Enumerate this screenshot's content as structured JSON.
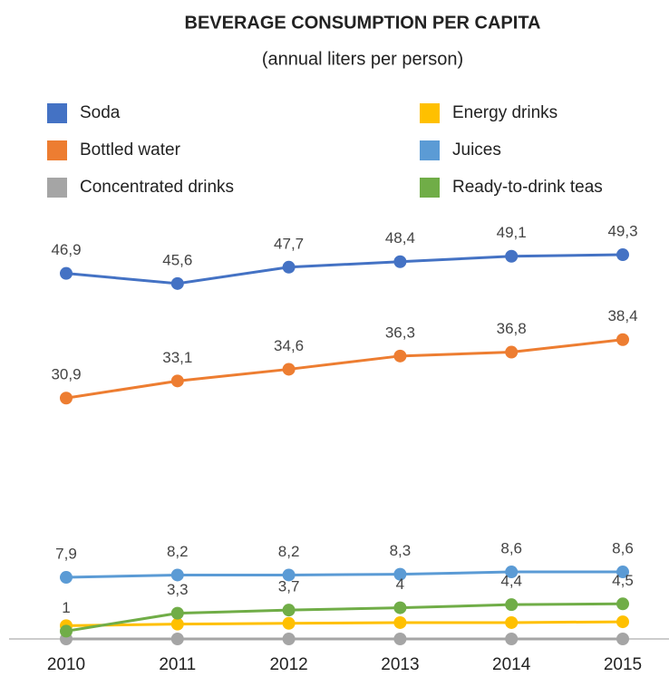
{
  "chart_data": {
    "type": "line",
    "title": "BEVERAGE CONSUMPTION PER CAPITA",
    "subtitle": "(annual liters per person)",
    "categories": [
      "2010",
      "2011",
      "2012",
      "2013",
      "2014",
      "2015"
    ],
    "ylim": [
      0,
      50
    ],
    "series": [
      {
        "name": "Soda",
        "color": "#4472c4",
        "values": [
          46.9,
          45.6,
          47.7,
          48.4,
          49.1,
          49.3
        ],
        "value_labels": [
          "46,9",
          "45,6",
          "47,7",
          "48,4",
          "49,1",
          "49,3"
        ]
      },
      {
        "name": "Bottled water",
        "color": "#ed7d31",
        "values": [
          30.9,
          33.1,
          34.6,
          36.3,
          36.8,
          38.4
        ],
        "value_labels": [
          "30,9",
          "33,1",
          "34,6",
          "36,3",
          "36,8",
          "38,4"
        ]
      },
      {
        "name": "Concentrated drinks",
        "color": "#a5a5a5",
        "values": [
          0,
          0,
          0,
          0,
          0,
          0
        ]
      },
      {
        "name": "Energy drinks",
        "color": "#ffc000",
        "values": [
          1.7,
          1.9,
          2.0,
          2.1,
          2.1,
          2.2
        ]
      },
      {
        "name": "Juices",
        "color": "#5b9bd5",
        "values": [
          7.9,
          8.2,
          8.2,
          8.3,
          8.6,
          8.6
        ],
        "value_labels": [
          "7,9",
          "8,2",
          "8,2",
          "8,3",
          "8,6",
          "8,6"
        ]
      },
      {
        "name": "Ready-to-drink teas",
        "color": "#70ad47",
        "values": [
          1,
          3.3,
          3.7,
          4,
          4.4,
          4.5
        ],
        "value_labels": [
          "1",
          "3,3",
          "3,7",
          "4",
          "4,4",
          "4,5"
        ]
      }
    ]
  }
}
